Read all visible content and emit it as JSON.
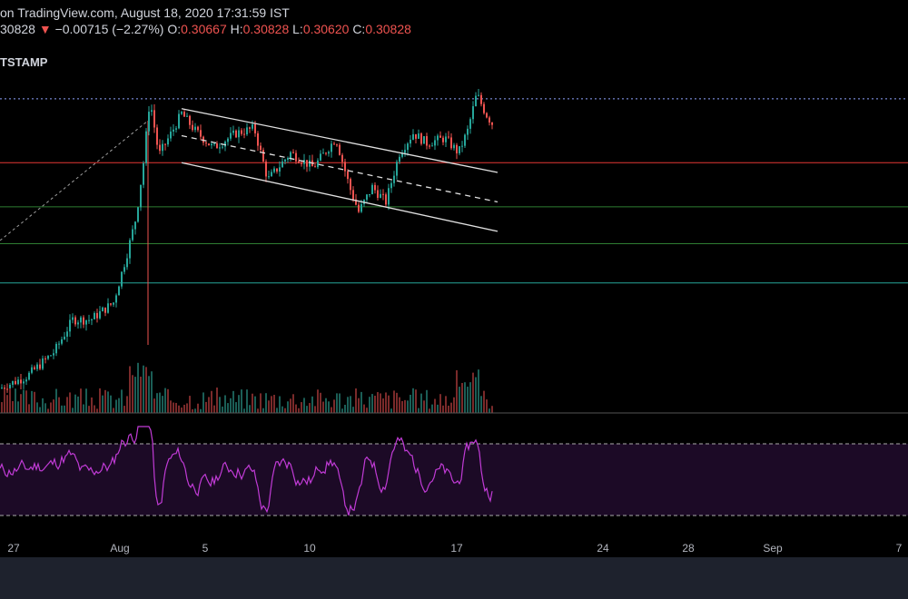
{
  "header": {
    "published": "on TradingView.com, August 18, 2020 17:31:59 IST",
    "price_fragment": "30828",
    "change_arrow": "▼",
    "change": "−0.00715 (−2.27%)",
    "open_label": "O:",
    "open": "0.30667",
    "high_label": "H:",
    "high": "0.30828",
    "low_label": "L:",
    "low": "0.30620",
    "close_label": "C:",
    "close": "0.30828",
    "symbol_fragment": "TSTAMP"
  },
  "colors": {
    "background": "#000000",
    "up_candle": "#26a69a",
    "down_candle": "#ef5350",
    "rsi_line": "#c13bd6",
    "rsi_band": "#1c0a26",
    "resistance_line": "#e53935",
    "support_line": "#2e7d32",
    "channel_line": "#e0e0e0",
    "peak_line": "#90a4ff"
  },
  "chart_data": {
    "type": "candlestick",
    "x_tick_labels": [
      "27",
      "Aug",
      "5",
      "10",
      "17",
      "24",
      "28",
      "Sep",
      "7"
    ],
    "price_series": [
      {
        "x": 0,
        "y": 0.2
      },
      {
        "x": 30,
        "y": 0.205
      },
      {
        "x": 60,
        "y": 0.215
      },
      {
        "x": 80,
        "y": 0.228
      },
      {
        "x": 100,
        "y": 0.228
      },
      {
        "x": 125,
        "y": 0.235
      },
      {
        "x": 140,
        "y": 0.255
      },
      {
        "x": 150,
        "y": 0.27
      },
      {
        "x": 158,
        "y": 0.292
      },
      {
        "x": 165,
        "y": 0.318
      },
      {
        "x": 175,
        "y": 0.295
      },
      {
        "x": 190,
        "y": 0.305
      },
      {
        "x": 200,
        "y": 0.312
      },
      {
        "x": 215,
        "y": 0.305
      },
      {
        "x": 235,
        "y": 0.298
      },
      {
        "x": 260,
        "y": 0.304
      },
      {
        "x": 280,
        "y": 0.306
      },
      {
        "x": 295,
        "y": 0.285
      },
      {
        "x": 320,
        "y": 0.296
      },
      {
        "x": 345,
        "y": 0.29
      },
      {
        "x": 370,
        "y": 0.302
      },
      {
        "x": 385,
        "y": 0.282
      },
      {
        "x": 395,
        "y": 0.272
      },
      {
        "x": 410,
        "y": 0.282
      },
      {
        "x": 425,
        "y": 0.276
      },
      {
        "x": 440,
        "y": 0.296
      },
      {
        "x": 455,
        "y": 0.304
      },
      {
        "x": 470,
        "y": 0.3
      },
      {
        "x": 490,
        "y": 0.302
      },
      {
        "x": 505,
        "y": 0.296
      },
      {
        "x": 515,
        "y": 0.305
      },
      {
        "x": 525,
        "y": 0.32
      },
      {
        "x": 535,
        "y": 0.312
      },
      {
        "x": 542,
        "y": 0.308
      }
    ],
    "horizontal_levels": [
      {
        "price": 0.318,
        "style": "dotted",
        "color": "#90a4ff"
      },
      {
        "price": 0.292,
        "style": "solid",
        "color": "#e53935"
      },
      {
        "price": 0.274,
        "style": "solid",
        "color": "#2e7d32"
      },
      {
        "price": 0.259,
        "style": "solid",
        "color": "#2e7d32"
      },
      {
        "price": 0.243,
        "style": "solid",
        "color": "#26a69a"
      }
    ],
    "channel": {
      "upper": [
        [
          200,
          0.314
        ],
        [
          548,
          0.288
        ]
      ],
      "mid": [
        [
          200,
          0.303
        ],
        [
          548,
          0.276
        ]
      ],
      "lower": [
        [
          200,
          0.292
        ],
        [
          548,
          0.264
        ]
      ]
    },
    "volume": [
      3,
      4,
      2,
      5,
      6,
      3,
      4,
      5,
      7,
      9,
      5,
      6,
      8,
      10,
      12,
      14,
      9,
      7,
      6,
      5,
      8,
      7,
      6,
      9,
      12,
      8,
      5,
      4,
      6,
      7
    ],
    "rsi": {
      "upper": 70,
      "lower": 30
    }
  }
}
